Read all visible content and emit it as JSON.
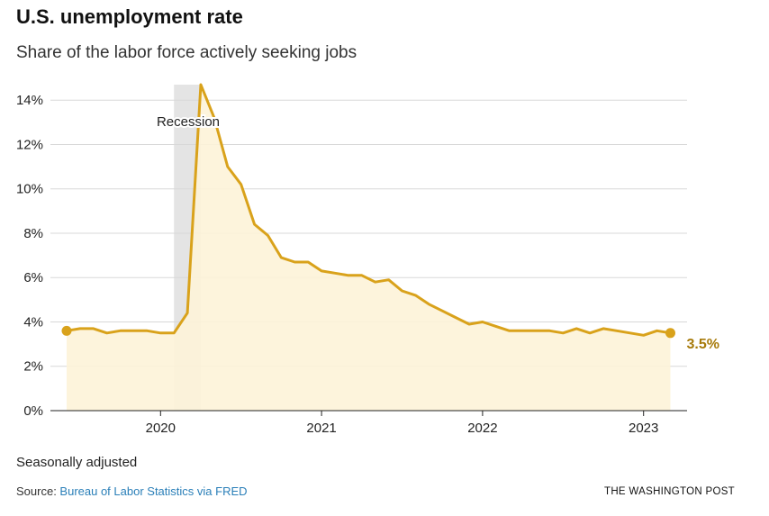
{
  "title": "U.S. unemployment rate",
  "subtitle": "Share of the labor force actively seeking jobs",
  "note": "Seasonally adjusted",
  "source": {
    "prefix": "Source: ",
    "link_text": "Bureau of Labor Statistics via FRED"
  },
  "brand": "THE WASHINGTON POST",
  "colors": {
    "line": "#d9a21b",
    "area": "#fdf3d8",
    "recession": "#e4e4e4",
    "end_label": "#a77a0a",
    "grid": "#d8d8d8",
    "link": "#2a7fb8"
  },
  "chart_data": {
    "type": "line",
    "series": [
      {
        "x": [
          "2019-06",
          "2019-07",
          "2019-08",
          "2019-09",
          "2019-10",
          "2019-11",
          "2019-12",
          "2020-01",
          "2020-02",
          "2020-03",
          "2020-04",
          "2020-05",
          "2020-06",
          "2020-07",
          "2020-08",
          "2020-09",
          "2020-10",
          "2020-11",
          "2020-12",
          "2021-01",
          "2021-02",
          "2021-03",
          "2021-04",
          "2021-05",
          "2021-06",
          "2021-07",
          "2021-08",
          "2021-09",
          "2021-10",
          "2021-11",
          "2021-12",
          "2022-01",
          "2022-02",
          "2022-03",
          "2022-04",
          "2022-05",
          "2022-06",
          "2022-07",
          "2022-08",
          "2022-09",
          "2022-10",
          "2022-11",
          "2022-12",
          "2023-01",
          "2023-02",
          "2023-03"
        ],
        "values": [
          3.6,
          3.7,
          3.7,
          3.5,
          3.6,
          3.6,
          3.6,
          3.5,
          3.5,
          4.4,
          14.7,
          13.2,
          11.0,
          10.2,
          8.4,
          7.9,
          6.9,
          6.7,
          6.7,
          6.3,
          6.2,
          6.1,
          6.1,
          5.8,
          5.9,
          5.4,
          5.2,
          4.8,
          4.5,
          4.2,
          3.9,
          4.0,
          3.8,
          3.6,
          3.6,
          3.6,
          3.6,
          3.5,
          3.7,
          3.5,
          3.7,
          3.6,
          3.5,
          3.4,
          3.6,
          3.5
        ]
      }
    ],
    "x_ticks": [
      "2020",
      "2021",
      "2022",
      "2023"
    ],
    "y_ticks": [
      "0%",
      "2%",
      "4%",
      "6%",
      "8%",
      "10%",
      "12%",
      "14%"
    ],
    "ylim": [
      0,
      14.7
    ],
    "end_label": "3.5%",
    "recession": {
      "label": "Recession",
      "start": "2020-02",
      "end": "2020-04"
    },
    "grid": true,
    "area_fill": true
  }
}
